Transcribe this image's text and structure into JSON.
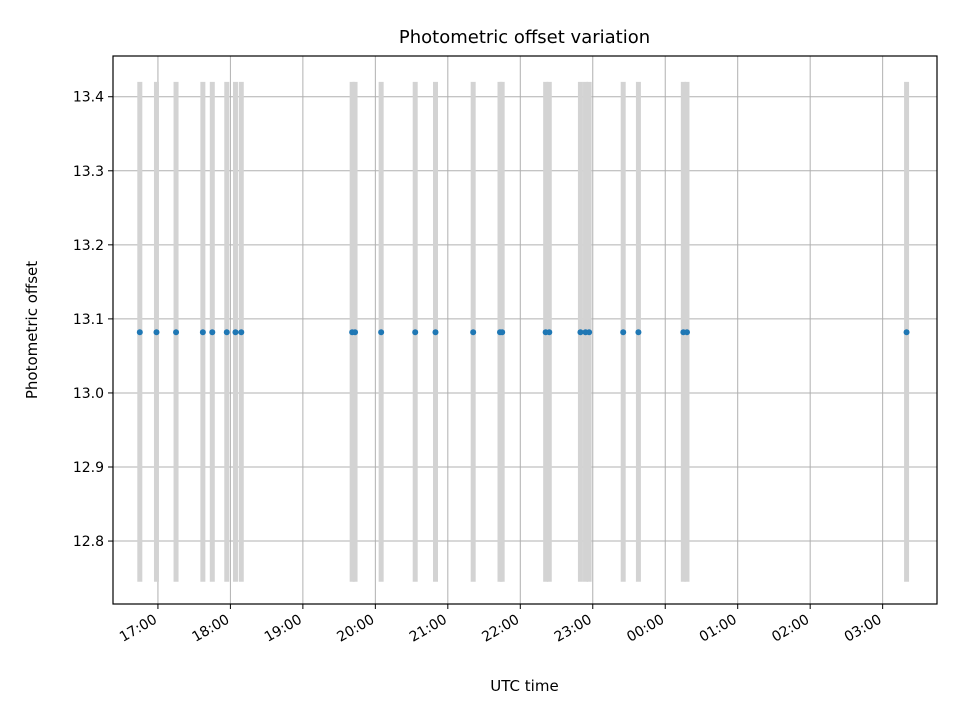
{
  "chart_data": {
    "type": "scatter",
    "title": "Photometric offset variation",
    "xlabel": "UTC time",
    "ylabel": "Photometric offset",
    "x_axis_kind": "time",
    "x_ticks": [
      "17:00",
      "18:00",
      "19:00",
      "20:00",
      "21:00",
      "22:00",
      "23:00",
      "00:00",
      "01:00",
      "02:00",
      "03:00"
    ],
    "x_tick_hours": [
      17,
      18,
      19,
      20,
      21,
      22,
      23,
      24,
      25,
      26,
      27
    ],
    "xlim_hours": [
      16.38,
      27.75
    ],
    "y_ticks": [
      "12.8",
      "12.9",
      "13.0",
      "13.1",
      "13.2",
      "13.3",
      "13.4"
    ],
    "y_tick_values": [
      12.8,
      12.9,
      13.0,
      13.1,
      13.2,
      13.3,
      13.4
    ],
    "ylim": [
      12.715,
      13.455
    ],
    "grid": true,
    "series": [
      {
        "marker_color": "#1f77b4",
        "bar_color": "#d3d3d3",
        "x_hours": [
          16.75,
          16.98,
          17.25,
          17.62,
          17.75,
          17.95,
          18.07,
          18.15,
          19.68,
          19.72,
          20.08,
          20.55,
          20.83,
          21.35,
          21.72,
          21.75,
          22.35,
          22.4,
          22.83,
          22.9,
          22.95,
          23.42,
          23.63,
          24.25,
          24.3,
          27.33
        ],
        "y": [
          13.082,
          13.082,
          13.082,
          13.082,
          13.082,
          13.082,
          13.082,
          13.082,
          13.082,
          13.082,
          13.082,
          13.082,
          13.082,
          13.082,
          13.082,
          13.082,
          13.082,
          13.082,
          13.082,
          13.082,
          13.082,
          13.082,
          13.082,
          13.082,
          13.082,
          13.082
        ],
        "err_low": [
          12.745,
          12.745,
          12.745,
          12.745,
          12.745,
          12.745,
          12.745,
          12.745,
          12.745,
          12.745,
          12.745,
          12.745,
          12.745,
          12.745,
          12.745,
          12.745,
          12.745,
          12.745,
          12.745,
          12.745,
          12.745,
          12.745,
          12.745,
          12.745,
          12.745,
          12.745
        ],
        "err_high": [
          13.42,
          13.42,
          13.42,
          13.42,
          13.42,
          13.42,
          13.42,
          13.42,
          13.42,
          13.42,
          13.42,
          13.42,
          13.42,
          13.42,
          13.42,
          13.42,
          13.42,
          13.42,
          13.42,
          13.42,
          13.42,
          13.42,
          13.42,
          13.42,
          13.42,
          13.42
        ]
      }
    ]
  }
}
